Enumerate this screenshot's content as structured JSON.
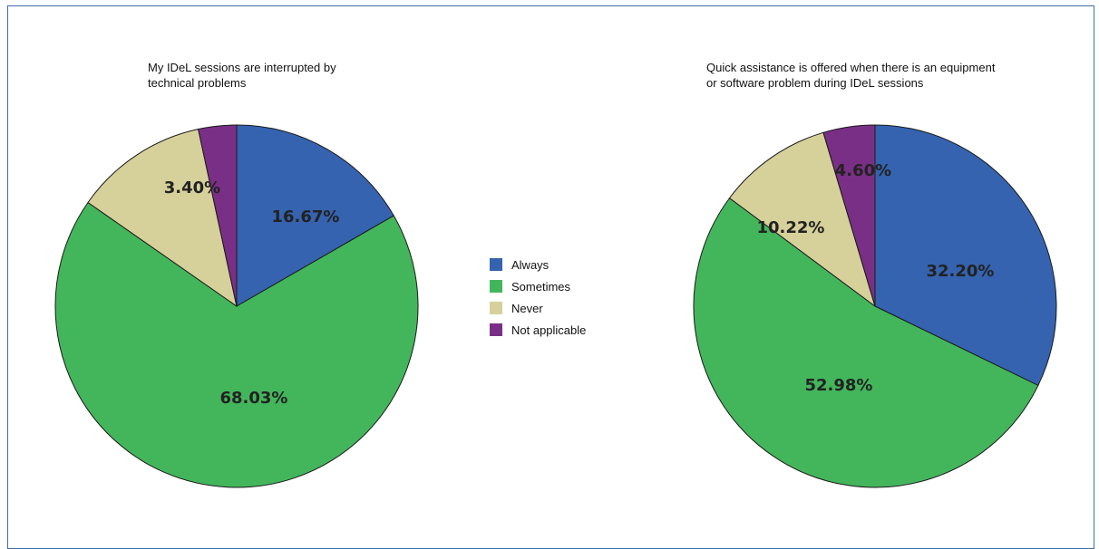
{
  "colors": {
    "Always": "#3563b0",
    "Sometimes": "#43b65c",
    "Never": "#d6d09a",
    "Not applicable": "#7a2f86"
  },
  "legend": {
    "items": [
      "Always",
      "Sometimes",
      "Never",
      "Not applicable"
    ]
  },
  "chart_data": [
    {
      "type": "pie",
      "title": "My IDeL sessions are interrupted by technical problems",
      "categories": [
        "Always",
        "Sometimes",
        "Never",
        "Not applicable"
      ],
      "values": [
        16.67,
        68.03,
        11.9,
        3.4
      ],
      "labels": [
        "16.67%",
        "68.03%",
        "",
        "3.40%"
      ]
    },
    {
      "type": "pie",
      "title": "Quick assistance is offered when there is an equipment or software problem during IDeL sessions",
      "categories": [
        "Always",
        "Sometimes",
        "Never",
        "Not applicable"
      ],
      "values": [
        32.2,
        52.98,
        10.22,
        4.6
      ],
      "labels": [
        "32.20%",
        "52.98%",
        "10.22%",
        "4.60%"
      ]
    }
  ]
}
